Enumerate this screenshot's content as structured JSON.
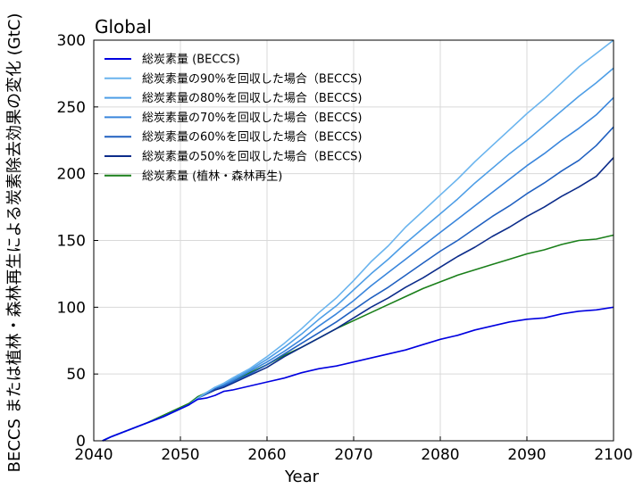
{
  "chart_data": {
    "type": "line",
    "title": "Global",
    "xlabel": "Year",
    "ylabel": "BECCS または植林・森林再生による炭素除去効果の変化 (GtC)",
    "xlim": [
      2040,
      2100
    ],
    "ylim": [
      0,
      300
    ],
    "xticks": [
      2040,
      2050,
      2060,
      2070,
      2080,
      2090,
      2100
    ],
    "yticks": [
      0,
      50,
      100,
      150,
      200,
      250,
      300
    ],
    "grid": true,
    "legend_position": "top-left",
    "series": [
      {
        "name": "総炭素量 (BECCS)",
        "color": "#0000e0",
        "x": [
          2041,
          2042,
          2044,
          2046,
          2048,
          2050,
          2051,
          2052,
          2053,
          2054,
          2055,
          2056,
          2058,
          2060,
          2062,
          2064,
          2066,
          2068,
          2070,
          2072,
          2074,
          2076,
          2077,
          2078,
          2080,
          2082,
          2084,
          2086,
          2088,
          2090,
          2092,
          2094,
          2095,
          2096,
          2098,
          2100
        ],
        "y": [
          0,
          3,
          8,
          13,
          18,
          24,
          27,
          31,
          32,
          34,
          37,
          38,
          41,
          44,
          47,
          51,
          54,
          56,
          59,
          62,
          65,
          68,
          70,
          72,
          76,
          79,
          83,
          86,
          89,
          91,
          92,
          95,
          96,
          97,
          98,
          100
        ]
      },
      {
        "name": "総炭素量の90%を回収した場合（BECCS)",
        "color": "#6ab4ee",
        "x": [
          2041,
          2042,
          2044,
          2046,
          2048,
          2050,
          2051,
          2052,
          2053,
          2054,
          2055,
          2056,
          2058,
          2060,
          2062,
          2064,
          2066,
          2068,
          2070,
          2072,
          2074,
          2076,
          2078,
          2080,
          2082,
          2084,
          2086,
          2088,
          2090,
          2092,
          2094,
          2096,
          2098,
          2100
        ],
        "y": [
          0,
          3,
          8,
          13,
          18,
          24,
          27,
          32,
          36,
          40,
          43,
          47,
          54,
          63,
          73,
          84,
          96,
          107,
          120,
          134,
          146,
          160,
          172,
          184,
          196,
          209,
          221,
          233,
          245,
          256,
          268,
          280,
          290,
          300
        ]
      },
      {
        "name": "総炭素量の80%を回収した場合（BECCS)",
        "color": "#4e9ee6",
        "x": [
          2041,
          2042,
          2044,
          2046,
          2048,
          2050,
          2051,
          2052,
          2053,
          2054,
          2055,
          2056,
          2058,
          2060,
          2062,
          2064,
          2066,
          2068,
          2070,
          2072,
          2074,
          2076,
          2078,
          2080,
          2082,
          2084,
          2086,
          2088,
          2090,
          2092,
          2094,
          2096,
          2098,
          2100
        ],
        "y": [
          0,
          3,
          8,
          13,
          18,
          24,
          27,
          32,
          36,
          40,
          43,
          46,
          53,
          61,
          70,
          80,
          91,
          101,
          113,
          125,
          136,
          148,
          159,
          170,
          181,
          193,
          204,
          215,
          225,
          236,
          247,
          258,
          268,
          279
        ]
      },
      {
        "name": "総炭素量の70%を回収した場合（BECCS)",
        "color": "#3a86dc",
        "x": [
          2041,
          2042,
          2044,
          2046,
          2048,
          2050,
          2051,
          2052,
          2053,
          2054,
          2055,
          2056,
          2058,
          2060,
          2062,
          2064,
          2066,
          2068,
          2070,
          2072,
          2074,
          2076,
          2078,
          2080,
          2082,
          2084,
          2086,
          2088,
          2090,
          2092,
          2094,
          2096,
          2098,
          2100
        ],
        "y": [
          0,
          3,
          8,
          13,
          18,
          24,
          27,
          32,
          36,
          40,
          42,
          45,
          52,
          59,
          67,
          76,
          86,
          95,
          105,
          116,
          126,
          136,
          146,
          156,
          166,
          176,
          186,
          196,
          206,
          215,
          225,
          234,
          244,
          257
        ]
      },
      {
        "name": "総炭素量の60%を回収した場合（BECCS)",
        "color": "#2060c0",
        "x": [
          2041,
          2042,
          2044,
          2046,
          2048,
          2050,
          2051,
          2052,
          2053,
          2054,
          2055,
          2056,
          2058,
          2060,
          2062,
          2064,
          2066,
          2068,
          2070,
          2072,
          2074,
          2076,
          2078,
          2080,
          2082,
          2084,
          2086,
          2088,
          2090,
          2092,
          2094,
          2096,
          2098,
          2100
        ],
        "y": [
          0,
          3,
          8,
          13,
          18,
          24,
          27,
          32,
          35,
          39,
          41,
          44,
          50,
          57,
          65,
          73,
          81,
          89,
          98,
          107,
          115,
          124,
          133,
          142,
          150,
          159,
          168,
          176,
          185,
          193,
          202,
          210,
          221,
          235
        ]
      },
      {
        "name": "総炭素量の50%を回収した場合（BECCS)",
        "color": "#0c2c8a",
        "x": [
          2041,
          2042,
          2044,
          2046,
          2048,
          2050,
          2051,
          2052,
          2053,
          2054,
          2055,
          2056,
          2058,
          2060,
          2062,
          2064,
          2066,
          2068,
          2070,
          2072,
          2074,
          2076,
          2078,
          2080,
          2082,
          2084,
          2086,
          2088,
          2090,
          2092,
          2094,
          2096,
          2098,
          2100
        ],
        "y": [
          0,
          3,
          8,
          13,
          18,
          24,
          27,
          32,
          35,
          38,
          40,
          43,
          49,
          55,
          63,
          70,
          77,
          84,
          92,
          100,
          107,
          115,
          122,
          130,
          138,
          145,
          153,
          160,
          168,
          175,
          183,
          190,
          198,
          212
        ]
      },
      {
        "name": "総炭素量 (植林・森林再生)",
        "color": "#1a7f1a",
        "x": [
          2041,
          2042,
          2044,
          2046,
          2048,
          2050,
          2051,
          2052,
          2053,
          2054,
          2055,
          2056,
          2058,
          2060,
          2062,
          2064,
          2066,
          2068,
          2070,
          2072,
          2074,
          2076,
          2078,
          2080,
          2082,
          2084,
          2086,
          2088,
          2090,
          2092,
          2094,
          2096,
          2098,
          2100
        ],
        "y": [
          0,
          3,
          8,
          13,
          19,
          25,
          28,
          33,
          36,
          39,
          42,
          44,
          51,
          57,
          64,
          70,
          77,
          84,
          90,
          96,
          102,
          108,
          114,
          119,
          124,
          128,
          132,
          136,
          140,
          143,
          147,
          150,
          151,
          154
        ]
      }
    ]
  }
}
